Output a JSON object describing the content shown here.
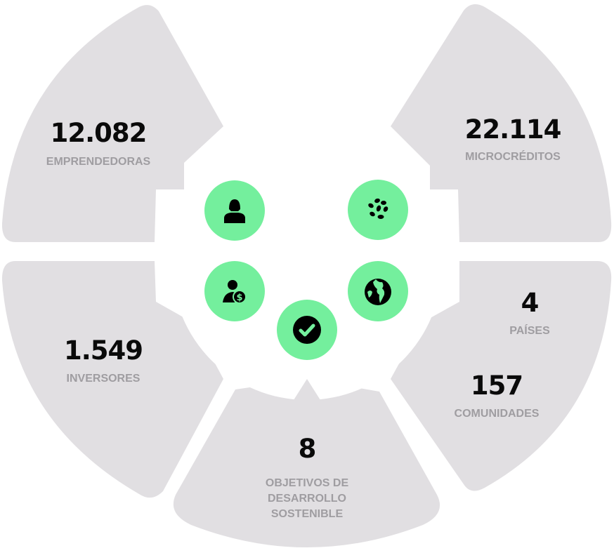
{
  "colors": {
    "panel": "#e1dfe2",
    "accent": "#74ef9d",
    "label": "#9f9da1",
    "number": "#0a0a0a"
  },
  "stats": [
    {
      "value": "12.082",
      "label": "EMPRENDEDORAS",
      "icon": "woman-user-icon"
    },
    {
      "value": "22.114",
      "label": "MICROCRÉDITOS",
      "icon": "seeds-icon"
    },
    {
      "value": "1.549",
      "label": "INVERSORES",
      "icon": "investor-dollar-icon"
    },
    {
      "value": "4",
      "label": "PAÍSES",
      "icon": "globe-icon"
    },
    {
      "value": "157",
      "label": "COMUNIDADES"
    },
    {
      "value": "8",
      "label_lines": [
        "OBJETIVOS DE",
        "DESARROLLO",
        "SOSTENIBLE"
      ],
      "icon": "check-circle-icon"
    }
  ]
}
